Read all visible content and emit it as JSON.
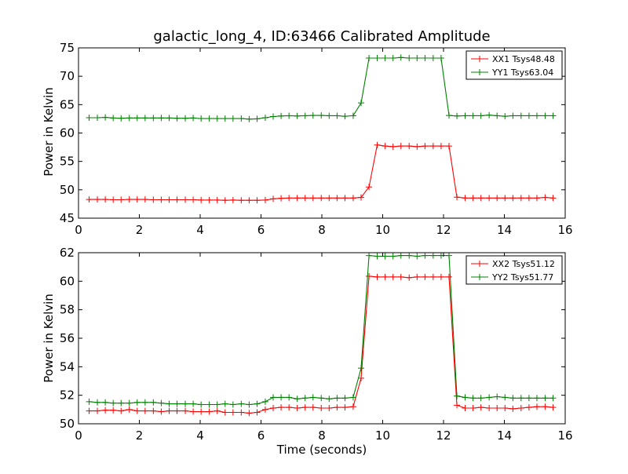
{
  "chart_data": [
    {
      "type": "line",
      "title": "galactic_long_4, ID:63466 Calibrated Amplitude",
      "xlabel": "",
      "ylabel": "Power in Kelvin",
      "xlim": [
        0,
        16
      ],
      "ylim": [
        45,
        75
      ],
      "xticks": [
        "0",
        "2",
        "4",
        "6",
        "8",
        "10",
        "12",
        "14",
        "16"
      ],
      "yticks": [
        "45",
        "50",
        "55",
        "60",
        "65",
        "70",
        "75"
      ],
      "grid": false,
      "legend_position": "top-right",
      "x": [
        0.35,
        0.62,
        0.88,
        1.14,
        1.4,
        1.67,
        1.93,
        2.19,
        2.46,
        2.72,
        2.98,
        3.24,
        3.51,
        3.77,
        4.03,
        4.3,
        4.56,
        4.82,
        5.08,
        5.35,
        5.61,
        5.87,
        6.14,
        6.4,
        6.66,
        6.92,
        7.19,
        7.45,
        7.71,
        7.98,
        8.24,
        8.5,
        8.76,
        9.03,
        9.29,
        9.55,
        9.82,
        10.08,
        10.34,
        10.6,
        10.87,
        11.13,
        11.39,
        11.66,
        11.92,
        12.18,
        12.44,
        12.71,
        12.97,
        13.23,
        13.5,
        13.76,
        14.02,
        14.28,
        14.55,
        14.81,
        15.07,
        15.34,
        15.6
      ],
      "series": [
        {
          "name": "XX1 Tsys48.48",
          "color": "#ff0000",
          "values": [
            48.3,
            48.3,
            48.3,
            48.25,
            48.25,
            48.3,
            48.3,
            48.3,
            48.25,
            48.25,
            48.25,
            48.25,
            48.25,
            48.25,
            48.2,
            48.2,
            48.2,
            48.15,
            48.2,
            48.15,
            48.15,
            48.15,
            48.2,
            48.4,
            48.5,
            48.55,
            48.55,
            48.55,
            48.55,
            48.55,
            48.55,
            48.55,
            48.55,
            48.55,
            48.65,
            50.5,
            57.9,
            57.7,
            57.6,
            57.7,
            57.7,
            57.6,
            57.7,
            57.7,
            57.7,
            57.7,
            48.7,
            48.55,
            48.55,
            48.55,
            48.55,
            48.55,
            48.55,
            48.55,
            48.55,
            48.55,
            48.55,
            48.65,
            48.55
          ]
        },
        {
          "name": "YY1 Tsys63.04",
          "color": "#008000",
          "values": [
            62.7,
            62.7,
            62.75,
            62.65,
            62.6,
            62.65,
            62.65,
            62.65,
            62.65,
            62.65,
            62.65,
            62.6,
            62.6,
            62.65,
            62.55,
            62.55,
            62.55,
            62.55,
            62.55,
            62.55,
            62.45,
            62.5,
            62.7,
            62.9,
            63.0,
            63.05,
            63.0,
            63.05,
            63.1,
            63.1,
            63.05,
            63.05,
            62.95,
            63.05,
            65.3,
            73.2,
            73.2,
            73.2,
            73.2,
            73.3,
            73.2,
            73.2,
            73.2,
            73.2,
            73.2,
            63.1,
            63.0,
            63.05,
            63.05,
            63.05,
            63.15,
            63.05,
            62.95,
            63.05,
            63.05,
            63.05,
            63.05,
            63.05,
            63.05
          ]
        }
      ]
    },
    {
      "type": "line",
      "title": "",
      "xlabel": "Time (seconds)",
      "ylabel": "Power in Kelvin",
      "xlim": [
        0,
        16
      ],
      "ylim": [
        50,
        62
      ],
      "xticks": [
        "0",
        "2",
        "4",
        "6",
        "8",
        "10",
        "12",
        "14",
        "16"
      ],
      "yticks": [
        "50",
        "52",
        "54",
        "56",
        "58",
        "60",
        "62"
      ],
      "grid": false,
      "legend_position": "top-right",
      "x": [
        0.35,
        0.62,
        0.88,
        1.14,
        1.4,
        1.67,
        1.93,
        2.19,
        2.46,
        2.72,
        2.98,
        3.24,
        3.51,
        3.77,
        4.03,
        4.3,
        4.56,
        4.82,
        5.08,
        5.35,
        5.61,
        5.87,
        6.14,
        6.4,
        6.66,
        6.92,
        7.19,
        7.45,
        7.71,
        7.98,
        8.24,
        8.5,
        8.76,
        9.03,
        9.29,
        9.55,
        9.82,
        10.08,
        10.34,
        10.6,
        10.87,
        11.13,
        11.39,
        11.66,
        11.92,
        12.18,
        12.44,
        12.71,
        12.97,
        13.23,
        13.5,
        13.76,
        14.02,
        14.28,
        14.55,
        14.81,
        15.07,
        15.34,
        15.6
      ],
      "series": [
        {
          "name": "XX2 Tsys51.12",
          "color": "#ff0000",
          "values": [
            50.9,
            50.9,
            50.95,
            50.95,
            50.9,
            51.0,
            50.9,
            50.9,
            50.9,
            50.85,
            50.9,
            50.9,
            50.9,
            50.85,
            50.85,
            50.85,
            50.9,
            50.8,
            50.8,
            50.8,
            50.75,
            50.8,
            51.0,
            51.1,
            51.15,
            51.15,
            51.1,
            51.15,
            51.15,
            51.1,
            51.1,
            51.15,
            51.15,
            51.2,
            53.2,
            60.35,
            60.3,
            60.3,
            60.3,
            60.3,
            60.25,
            60.3,
            60.3,
            60.3,
            60.3,
            60.3,
            51.3,
            51.1,
            51.1,
            51.15,
            51.1,
            51.1,
            51.1,
            51.05,
            51.1,
            51.15,
            51.2,
            51.2,
            51.15
          ]
        },
        {
          "name": "YY2 Tsys51.77",
          "color": "#008000",
          "values": [
            51.55,
            51.5,
            51.5,
            51.45,
            51.45,
            51.45,
            51.5,
            51.5,
            51.5,
            51.45,
            51.4,
            51.4,
            51.4,
            51.4,
            51.35,
            51.35,
            51.35,
            51.4,
            51.35,
            51.4,
            51.35,
            51.4,
            51.55,
            51.85,
            51.85,
            51.85,
            51.75,
            51.8,
            51.85,
            51.8,
            51.75,
            51.8,
            51.8,
            51.85,
            53.9,
            61.8,
            61.75,
            61.75,
            61.75,
            61.8,
            61.8,
            61.75,
            61.8,
            61.8,
            61.8,
            61.8,
            51.95,
            51.85,
            51.8,
            51.8,
            51.85,
            51.9,
            51.85,
            51.8,
            51.8,
            51.8,
            51.8,
            51.8,
            51.8
          ]
        }
      ]
    }
  ]
}
